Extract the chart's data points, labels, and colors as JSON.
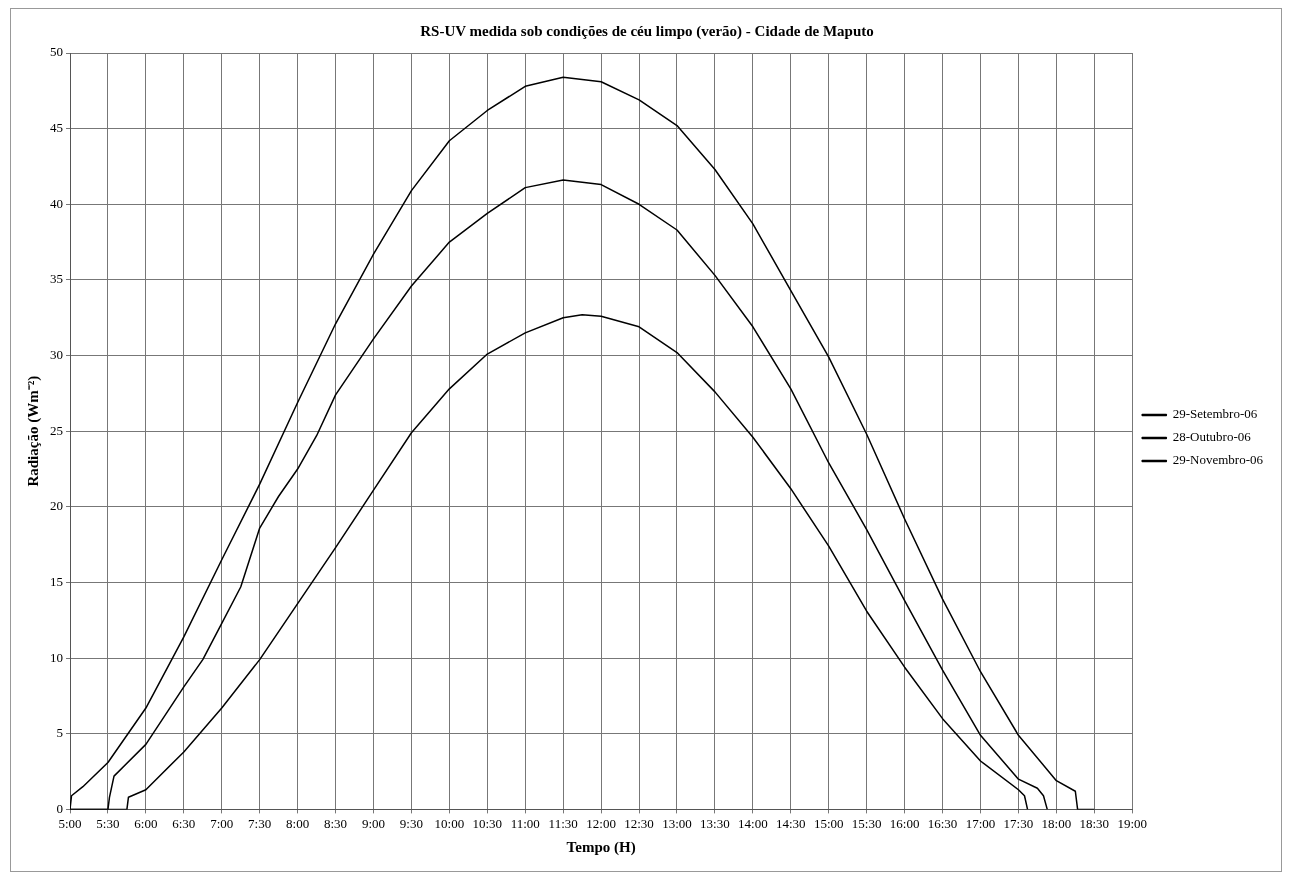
{
  "chart_data": {
    "type": "line",
    "title": "RS-UV medida sob condições de céu limpo (verão) - Cidade de Maputo",
    "xlabel": "Tempo (H)",
    "ylabel": "Radiação (Wm⁻²)",
    "xlim": [
      5,
      19
    ],
    "xticks": [
      {
        "value": 5,
        "label": "5:00"
      },
      {
        "value": 5.5,
        "label": "5:30"
      },
      {
        "value": 6,
        "label": "6:00"
      },
      {
        "value": 6.5,
        "label": "6:30"
      },
      {
        "value": 7,
        "label": "7:00"
      },
      {
        "value": 7.5,
        "label": "7:30"
      },
      {
        "value": 8,
        "label": "8:00"
      },
      {
        "value": 8.5,
        "label": "8:30"
      },
      {
        "value": 9,
        "label": "9:00"
      },
      {
        "value": 9.5,
        "label": "9:30"
      },
      {
        "value": 10,
        "label": "10:00"
      },
      {
        "value": 10.5,
        "label": "10:30"
      },
      {
        "value": 11,
        "label": "11:00"
      },
      {
        "value": 11.5,
        "label": "11:30"
      },
      {
        "value": 12,
        "label": "12:00"
      },
      {
        "value": 12.5,
        "label": "12:30"
      },
      {
        "value": 13,
        "label": "13:00"
      },
      {
        "value": 13.5,
        "label": "13:30"
      },
      {
        "value": 14,
        "label": "14:00"
      },
      {
        "value": 14.5,
        "label": "14:30"
      },
      {
        "value": 15,
        "label": "15:00"
      },
      {
        "value": 15.5,
        "label": "15:30"
      },
      {
        "value": 16,
        "label": "16:00"
      },
      {
        "value": 16.5,
        "label": "16:30"
      },
      {
        "value": 17,
        "label": "17:00"
      },
      {
        "value": 17.5,
        "label": "17:30"
      },
      {
        "value": 18,
        "label": "18:00"
      },
      {
        "value": 18.5,
        "label": "18:30"
      },
      {
        "value": 19,
        "label": "19:00"
      }
    ],
    "ylim": [
      0,
      50
    ],
    "yticks": [
      0,
      5,
      10,
      15,
      20,
      25,
      30,
      35,
      40,
      45,
      50
    ],
    "grid": true,
    "legend": "right",
    "marker": "none",
    "line_style": "solid",
    "series": [
      {
        "name": "29-Setembro-06",
        "color": "#000000",
        "x": [
          5,
          5.75,
          5.77,
          6,
          6.5,
          7,
          7.5,
          8,
          8.5,
          9,
          9.5,
          10,
          10.5,
          11,
          11.5,
          11.75,
          12,
          12.5,
          13,
          13.5,
          14,
          14.5,
          15,
          15.5,
          16,
          16.5,
          17,
          17.5,
          17.58,
          17.62
        ],
        "values": [
          0,
          0,
          0.8,
          1.3,
          3.8,
          6.7,
          9.9,
          13.6,
          17.3,
          21.1,
          24.9,
          27.8,
          30.1,
          31.5,
          32.5,
          32.7,
          32.6,
          31.9,
          30.2,
          27.6,
          24.6,
          21.2,
          17.4,
          13.1,
          9.4,
          6,
          3.2,
          1.3,
          0.9,
          0
        ]
      },
      {
        "name": "28-Outubro-06",
        "color": "#000000",
        "x": [
          5,
          5.5,
          5.52,
          5.58,
          6,
          6.5,
          6.75,
          7,
          7.25,
          7.5,
          7.75,
          8,
          8.25,
          8.5,
          9,
          9.5,
          10,
          10.5,
          11,
          11.5,
          12,
          12.5,
          13,
          13.5,
          14,
          14.5,
          15,
          15.5,
          16,
          16.5,
          17,
          17.5,
          17.75,
          17.83,
          17.88
        ],
        "values": [
          0,
          0,
          0.8,
          2.2,
          4.3,
          8.1,
          9.9,
          12.3,
          14.7,
          18.6,
          20.7,
          22.5,
          24.7,
          27.4,
          31.1,
          34.6,
          37.5,
          39.4,
          41.1,
          41.6,
          41.3,
          40,
          38.3,
          35.3,
          31.9,
          27.8,
          22.9,
          18.5,
          13.8,
          9.2,
          4.9,
          2,
          1.4,
          0.9,
          0
        ]
      },
      {
        "name": "29-Novembro-06",
        "color": "#000000",
        "x": [
          5,
          5.02,
          5.17,
          5.5,
          6,
          6.5,
          7,
          7.5,
          8,
          8.5,
          9,
          9.5,
          10,
          10.5,
          11,
          11.5,
          12,
          12.5,
          13,
          13.5,
          14,
          14.5,
          15,
          15.5,
          16,
          16.5,
          17,
          17.5,
          18,
          18.25,
          18.28,
          18.5
        ],
        "values": [
          0,
          0.9,
          1.5,
          3.1,
          6.7,
          11.4,
          16.5,
          21.5,
          26.9,
          32.1,
          36.7,
          40.9,
          44.2,
          46.2,
          47.8,
          48.4,
          48.1,
          46.9,
          45.2,
          42.3,
          38.7,
          34.3,
          29.9,
          24.8,
          19.2,
          13.9,
          9.1,
          4.9,
          1.9,
          1.2,
          0,
          0
        ]
      }
    ]
  }
}
